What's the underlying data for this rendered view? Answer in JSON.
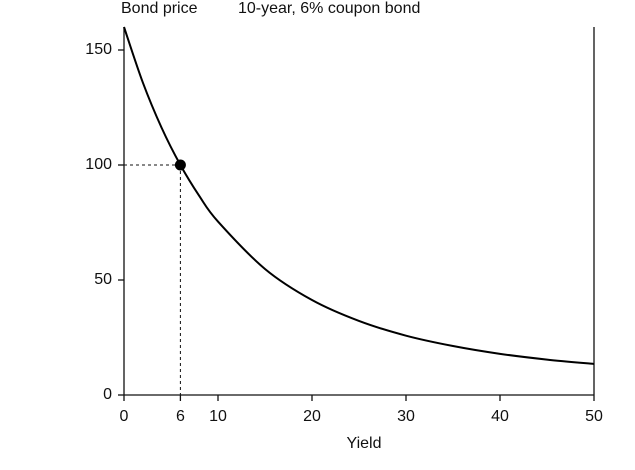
{
  "chart_data": {
    "type": "line",
    "title": "10-year, 6% coupon bond",
    "ylabel": "Bond price",
    "xlabel": "Yield",
    "x": [
      0,
      2,
      4,
      6,
      8,
      10,
      15,
      20,
      25,
      30,
      35,
      40,
      45,
      50
    ],
    "values": [
      160,
      135.9,
      116.2,
      100,
      86.6,
      75.4,
      54.8,
      41.3,
      32.2,
      25.8,
      21.3,
      17.9,
      15.4,
      13.5
    ],
    "color": "#000000",
    "highlight": {
      "x": 6,
      "y": 100
    },
    "xlim": [
      0,
      50
    ],
    "ylim": [
      0,
      160
    ],
    "xticks": [
      0,
      6,
      10,
      20,
      30,
      40,
      50
    ],
    "yticks": [
      0,
      50,
      100,
      150
    ]
  }
}
